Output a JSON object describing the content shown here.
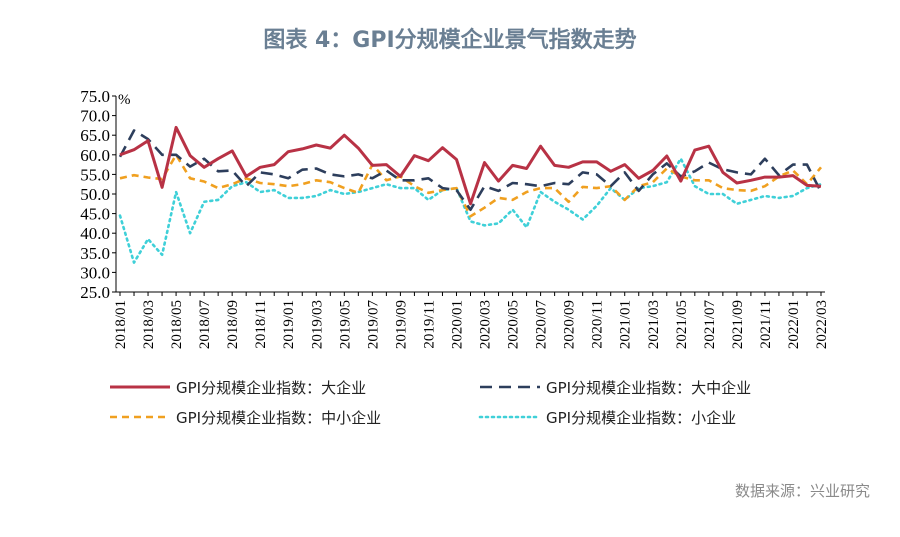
{
  "title": "图表 4：GPI分规模企业景气指数走势",
  "source": "数据来源：兴业研究",
  "chart_data": {
    "type": "line",
    "unit_label": "%",
    "ylim": [
      25.0,
      75.0
    ],
    "yticks": [
      "75.0",
      "70.0",
      "65.0",
      "60.0",
      "55.0",
      "50.0",
      "45.0",
      "40.0",
      "35.0",
      "30.0",
      "25.0"
    ],
    "x_tick_labels": [
      "2018/01",
      "2018/03",
      "2018/05",
      "2018/07",
      "2018/09",
      "2018/11",
      "2019/01",
      "2019/03",
      "2019/05",
      "2019/07",
      "2019/09",
      "2019/11",
      "2020/01",
      "2020/03",
      "2020/05",
      "2020/07",
      "2020/09",
      "2020/11",
      "2021/01",
      "2021/03",
      "2021/05",
      "2021/07",
      "2021/09",
      "2021/11",
      "2022/01",
      "2022/03"
    ],
    "series": [
      {
        "name": "GPI分规模企业指数：大企业",
        "color": "#b83245",
        "dash": "solid",
        "values": [
          60.0,
          61.3,
          63.6,
          51.7,
          67.0,
          59.8,
          56.8,
          59.0,
          61.0,
          54.5,
          56.8,
          57.5,
          60.8,
          61.5,
          62.5,
          61.7,
          65.0,
          61.7,
          57.3,
          57.5,
          54.5,
          59.8,
          58.5,
          61.8,
          58.8,
          47.5,
          58.0,
          53.3,
          57.3,
          56.5,
          62.2,
          57.3,
          56.8,
          58.2,
          58.2,
          55.8,
          57.5,
          54.0,
          56.0,
          59.7,
          53.3,
          61.2,
          62.2,
          55.5,
          52.8,
          53.5,
          54.3,
          54.3,
          54.7,
          52.2,
          52.0
        ]
      },
      {
        "name": "GPI分规模企业指数：大中企业",
        "color": "#2d3e5c",
        "dash": "longdash",
        "values": [
          59.5,
          66.2,
          64.0,
          60.0,
          60.0,
          57.0,
          59.0,
          55.8,
          56.0,
          52.0,
          55.5,
          55.0,
          54.0,
          56.2,
          56.5,
          55.0,
          54.5,
          55.0,
          54.0,
          56.0,
          53.5,
          53.5,
          54.0,
          51.5,
          51.0,
          46.0,
          52.0,
          50.8,
          52.8,
          52.5,
          52.0,
          52.8,
          52.5,
          55.5,
          55.0,
          52.0,
          55.5,
          50.8,
          55.0,
          57.8,
          54.5,
          55.8,
          58.0,
          56.3,
          55.5,
          55.0,
          59.0,
          54.8,
          57.5,
          57.5,
          50.5
        ]
      },
      {
        "name": "GPI分规模企业指数：中小企业",
        "color": "#f0a020",
        "dash": "dash",
        "values": [
          54.0,
          54.8,
          54.2,
          53.8,
          60.0,
          54.0,
          53.2,
          51.5,
          52.5,
          54.0,
          52.8,
          52.5,
          52.0,
          52.5,
          53.5,
          53.0,
          51.5,
          50.3,
          57.5,
          53.5,
          54.5,
          52.0,
          50.3,
          51.0,
          51.5,
          44.3,
          46.5,
          49.0,
          48.5,
          50.5,
          51.5,
          51.5,
          48.0,
          51.8,
          51.5,
          52.0,
          48.5,
          52.0,
          53.0,
          56.5,
          54.5,
          53.5,
          53.5,
          51.5,
          51.0,
          50.8,
          52.0,
          54.5,
          56.0,
          52.5,
          56.8
        ]
      },
      {
        "name": "GPI分规模企业指数：小企业",
        "color": "#3fd0d8",
        "dash": "dot",
        "values": [
          44.5,
          32.5,
          38.5,
          34.5,
          50.5,
          40.0,
          48.0,
          48.5,
          52.0,
          53.0,
          50.5,
          51.0,
          49.0,
          49.0,
          49.5,
          51.0,
          50.0,
          50.5,
          51.5,
          52.5,
          51.5,
          51.5,
          48.5,
          51.0,
          51.5,
          43.0,
          42.0,
          42.5,
          46.0,
          41.5,
          50.5,
          48.0,
          46.0,
          43.5,
          47.0,
          51.5,
          48.5,
          51.5,
          52.0,
          53.0,
          59.0,
          52.0,
          50.0,
          50.0,
          47.5,
          48.5,
          49.5,
          49.0,
          49.5,
          51.5,
          52.5
        ]
      }
    ]
  }
}
